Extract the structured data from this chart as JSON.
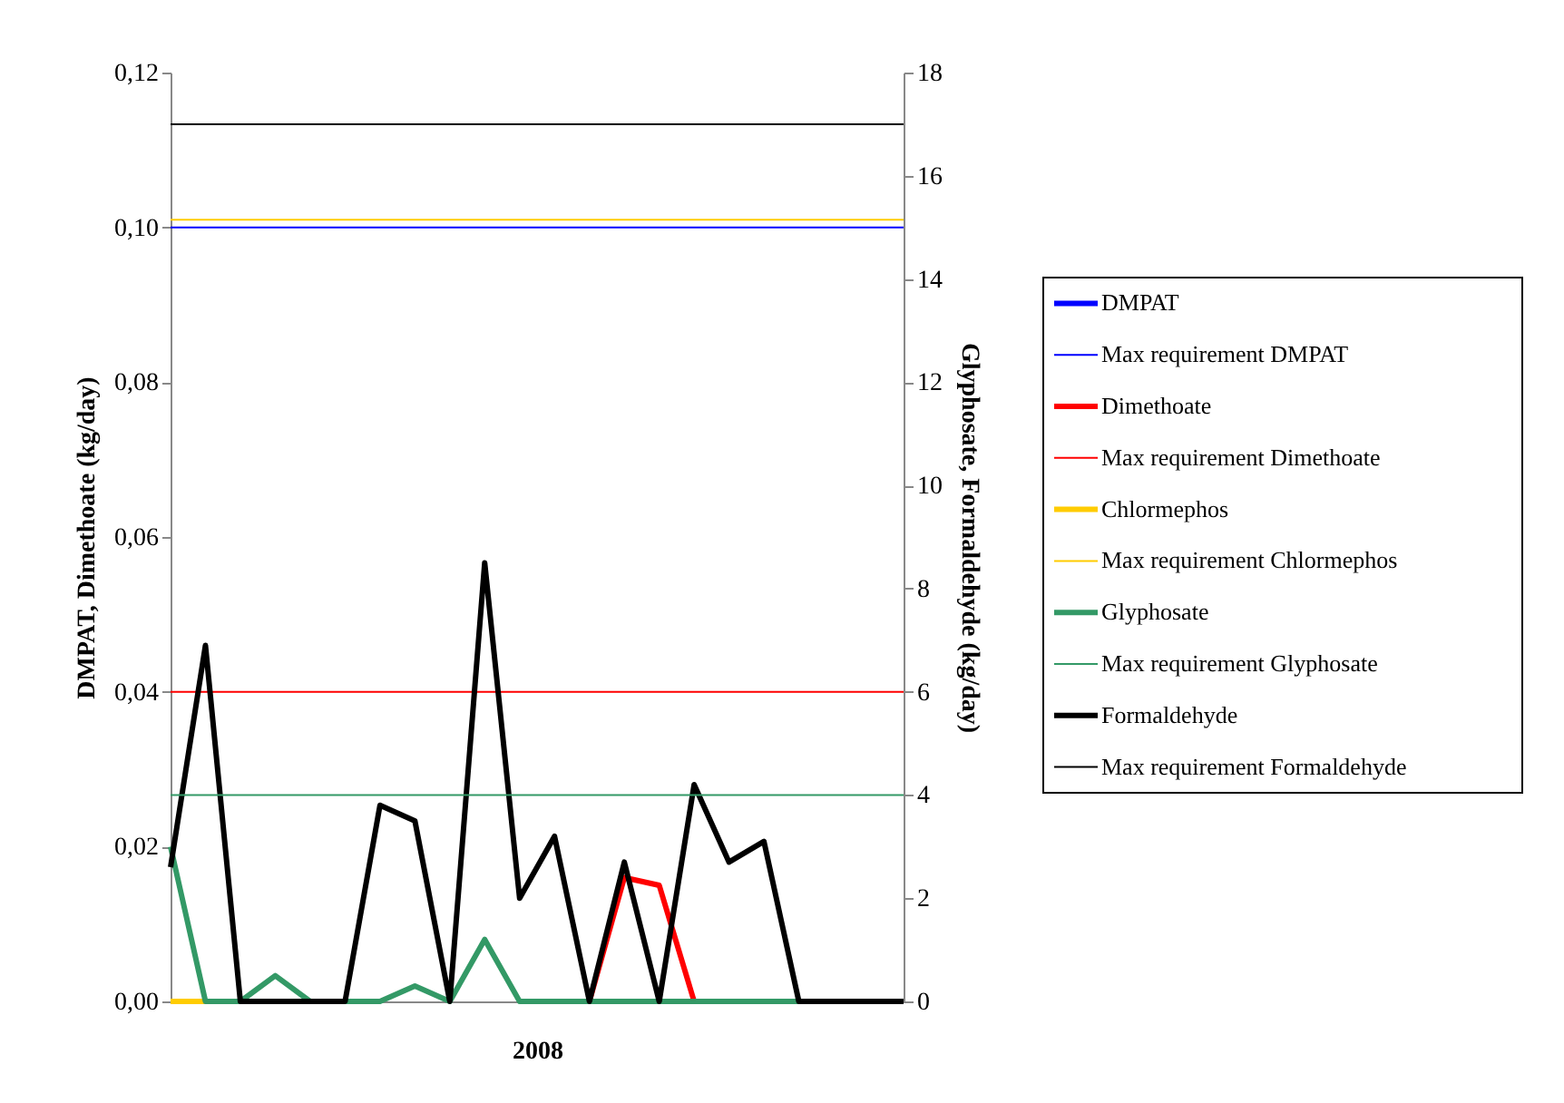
{
  "chart_data": {
    "type": "line",
    "xlabel": "2008",
    "ylabel": "DMPAT, Dimethoate (kg/day)",
    "y2label": "Glyphosate, Formaldehyde (kg/day)",
    "categories": [
      null,
      null,
      null,
      null,
      null,
      null,
      null,
      null,
      null,
      null,
      null,
      null,
      null,
      null,
      null,
      null,
      null,
      null,
      null,
      null,
      null,
      null
    ],
    "series": [
      {
        "name": "DMPAT",
        "color": "#0000ff",
        "values": [
          null,
          null,
          null,
          null,
          null,
          null,
          null,
          null,
          null,
          null,
          null,
          null,
          null,
          null,
          null,
          null,
          null,
          null,
          null,
          null,
          null,
          null
        ]
      },
      {
        "name": "Dimethoate",
        "color": "#ff0000",
        "values": [
          null,
          null,
          null,
          null,
          null,
          null,
          null,
          null,
          null,
          null,
          null,
          null,
          0,
          0.016,
          0.015,
          0,
          null,
          null,
          null,
          null,
          null,
          null
        ]
      },
      {
        "name": "Chlormephos",
        "color": "#ffcc00",
        "values": [
          0,
          0,
          null,
          null,
          null,
          null,
          null,
          null,
          null,
          null,
          null,
          null,
          null,
          null,
          null,
          null,
          null,
          null,
          null,
          null,
          null,
          null
        ]
      },
      {
        "name": "Glyphosate",
        "color": "#339966",
        "axis": "y2",
        "values": [
          3.0,
          0,
          0,
          0.5,
          0,
          0,
          0,
          0.3,
          0,
          1.2,
          0,
          0,
          0,
          0,
          0,
          0,
          0,
          0,
          0,
          null,
          null,
          null
        ]
      },
      {
        "name": "Formaldehyde",
        "color": "#000000",
        "axis": "y2",
        "values": [
          2.6,
          6.9,
          0,
          0,
          0,
          0,
          3.8,
          3.5,
          0,
          8.5,
          2.0,
          3.2,
          0,
          2.7,
          0,
          4.2,
          2.7,
          3.1,
          0,
          0,
          0,
          0
        ]
      }
    ],
    "ref_lines": [
      {
        "axis": "y",
        "value": 0.1,
        "label": "Max requirement DMPAT",
        "color": "#0000ff"
      },
      {
        "axis": "y",
        "value": 0.04,
        "label": "Max requirement Dimethoate",
        "color": "#ff0000"
      },
      {
        "axis": "y",
        "value": 0.101,
        "label": "Max requirement Chlormephos",
        "color": "#ffcc00"
      },
      {
        "axis": "y2",
        "value": 4,
        "label": "Max requirement Glyphosate",
        "color": "#339966"
      },
      {
        "axis": "y2",
        "value": 17,
        "label": "Max requirement Formaldehyde",
        "color": "#000000"
      }
    ],
    "ylim": [
      0,
      0.12
    ],
    "yticks": [
      {
        "value": 0,
        "label": "0,00"
      },
      {
        "value": 0.02,
        "label": "0,02"
      },
      {
        "value": 0.04,
        "label": "0,04"
      },
      {
        "value": 0.06,
        "label": "0,06"
      },
      {
        "value": 0.08,
        "label": "0,08"
      },
      {
        "value": 0.1,
        "label": "0,10"
      },
      {
        "value": 0.12,
        "label": "0,12"
      }
    ],
    "y2lim": [
      0,
      18
    ],
    "y2ticks": [
      0,
      2,
      4,
      6,
      8,
      10,
      12,
      14,
      16,
      18
    ],
    "legend": "right",
    "grid": false,
    "marker": "none",
    "line_style": "solid"
  }
}
